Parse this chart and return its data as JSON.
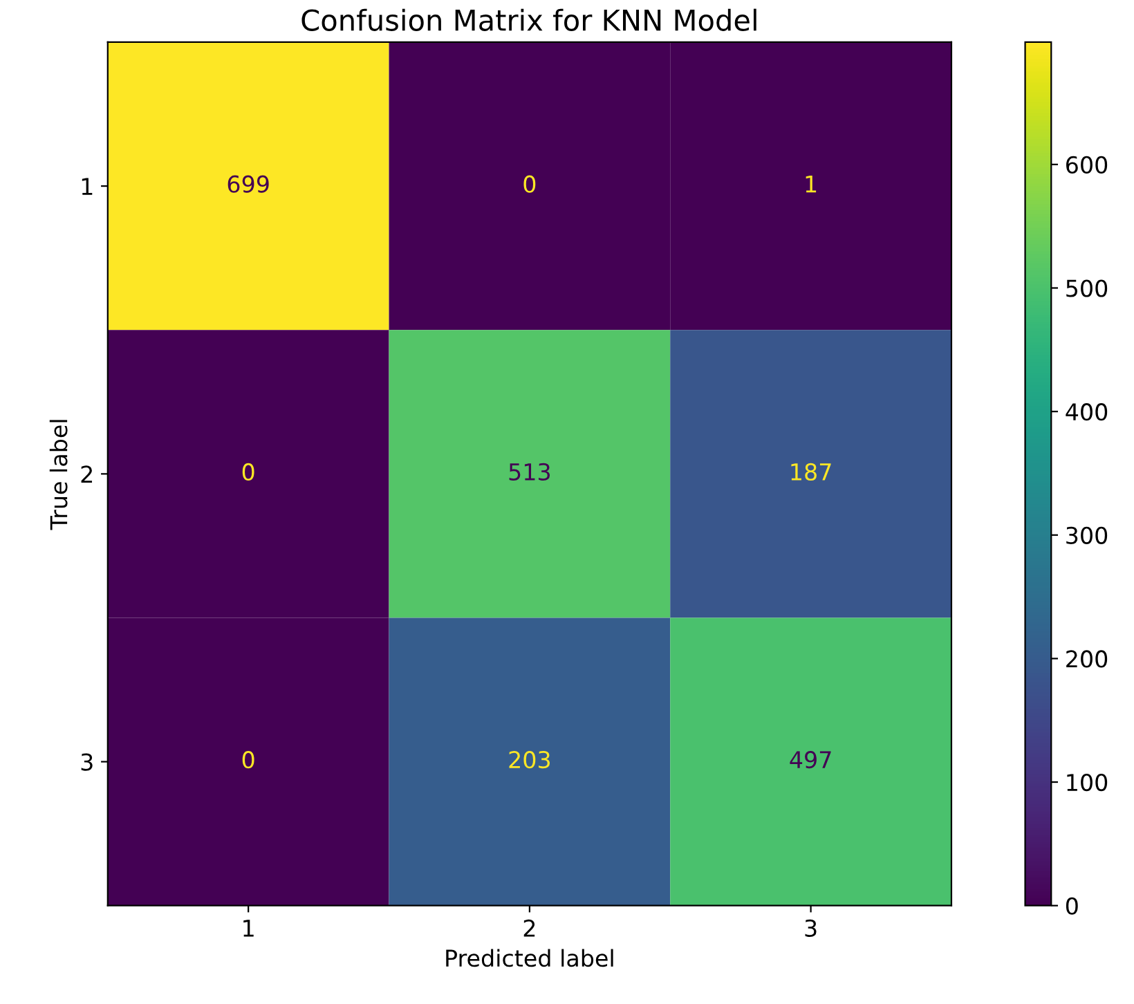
{
  "chart_data": {
    "type": "heatmap",
    "title": "Confusion Matrix for KNN Model",
    "xlabel": "Predicted label",
    "ylabel": "True label",
    "categories": [
      "1",
      "2",
      "3"
    ],
    "y_categories": [
      "1",
      "2",
      "3"
    ],
    "cells": [
      [
        699,
        0,
        1
      ],
      [
        0,
        513,
        187
      ],
      [
        0,
        203,
        497
      ]
    ],
    "data_labels": true,
    "clim": [
      0,
      699
    ],
    "cticks": [
      0,
      100,
      200,
      300,
      400,
      500,
      600
    ]
  }
}
